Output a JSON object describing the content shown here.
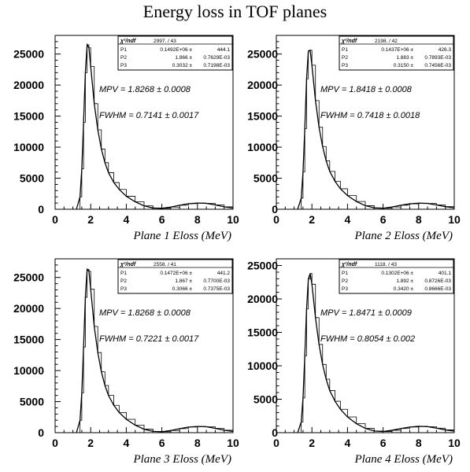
{
  "title": "Energy loss in TOF planes",
  "chart_data": [
    {
      "type": "line",
      "title": "",
      "xlabel": "Plane 1 Eloss (MeV)",
      "ylabel": "",
      "xlim": [
        0,
        10
      ],
      "ylim": [
        0,
        28000
      ],
      "xticks": [
        "0",
        "2",
        "4",
        "6",
        "8",
        "10"
      ],
      "yticks": [
        "0",
        "5000",
        "10000",
        "15000",
        "20000",
        "25000"
      ],
      "annotations": [
        "MPV = 1.8268 ± 0.0008",
        "FWHM = 0.7141 ± 0.0017"
      ],
      "fit_box": {
        "header": {
          "label": "χ²/ndf",
          "value": "2997.  /  43"
        },
        "rows": [
          {
            "label": "P1",
            "value": "0.1492E+06 ±",
            "error": "444.1"
          },
          {
            "label": "P2",
            "value": "1.866 ±",
            "error": "0.7629E-03"
          },
          {
            "label": "P3",
            "value": "0.3032 ±",
            "error": "0.7198E-03"
          }
        ]
      },
      "series": [
        {
          "x": [
            1.2,
            1.4,
            1.5,
            1.6,
            1.7,
            1.8,
            1.9,
            2.0,
            2.2,
            2.4,
            2.6,
            2.8,
            3.0,
            3.3,
            3.6,
            4.0,
            4.5,
            5.0,
            5.5,
            6.0,
            6.5,
            7.0,
            7.5,
            8.0,
            8.5,
            9.0,
            9.5,
            10.0
          ],
          "y": [
            0,
            2000,
            6500,
            14000,
            22000,
            26500,
            26000,
            23000,
            17000,
            12800,
            9700,
            7500,
            5900,
            4300,
            3200,
            2100,
            1200,
            550,
            200,
            150,
            350,
            650,
            900,
            1000,
            950,
            700,
            400,
            200
          ]
        }
      ]
    },
    {
      "type": "line",
      "title": "",
      "xlabel": "Plane 2 Eloss (MeV)",
      "ylabel": "",
      "xlim": [
        0,
        10
      ],
      "ylim": [
        0,
        28000
      ],
      "xticks": [
        "0",
        "2",
        "4",
        "6",
        "8",
        "10"
      ],
      "yticks": [
        "0",
        "5000",
        "10000",
        "15000",
        "20000",
        "25000"
      ],
      "annotations": [
        "MPV = 1.8418 ± 0.0008",
        "FWHM = 0.7418 ± 0.0018"
      ],
      "fit_box": {
        "header": {
          "label": "χ²/ndf",
          "value": "2198.  /  42"
        },
        "rows": [
          {
            "label": "P1",
            "value": "0.1437E+06 ±",
            "error": "426.3"
          },
          {
            "label": "P2",
            "value": "1.883 ±",
            "error": "0.7893E-03"
          },
          {
            "label": "P3",
            "value": "0.3150 ±",
            "error": "0.7456E-03"
          }
        ]
      },
      "series": [
        {
          "x": [
            1.2,
            1.4,
            1.5,
            1.6,
            1.7,
            1.8,
            1.9,
            2.0,
            2.2,
            2.4,
            2.6,
            2.8,
            3.0,
            3.3,
            3.6,
            4.0,
            4.5,
            5.0,
            5.5,
            6.0,
            6.5,
            7.0,
            7.5,
            8.0,
            8.5,
            9.0,
            9.5,
            10.0
          ],
          "y": [
            0,
            1800,
            6000,
            13000,
            21000,
            25500,
            25600,
            23200,
            17500,
            13200,
            10100,
            7800,
            6100,
            4500,
            3300,
            2200,
            1250,
            580,
            220,
            160,
            360,
            650,
            880,
            980,
            930,
            700,
            420,
            220
          ]
        }
      ]
    },
    {
      "type": "line",
      "title": "",
      "xlabel": "Plane 3 Eloss (MeV)",
      "ylabel": "",
      "xlim": [
        0,
        10
      ],
      "ylim": [
        0,
        28000
      ],
      "xticks": [
        "0",
        "2",
        "4",
        "6",
        "8",
        "10"
      ],
      "yticks": [
        "0",
        "5000",
        "10000",
        "15000",
        "20000",
        "25000"
      ],
      "annotations": [
        "MPV = 1.8268 ± 0.0008",
        "FWHM = 0.7221 ± 0.0017"
      ],
      "fit_box": {
        "header": {
          "label": "χ²/ndf",
          "value": "2558.  /  41"
        },
        "rows": [
          {
            "label": "P1",
            "value": "0.1472E+06 ±",
            "error": "441.2"
          },
          {
            "label": "P2",
            "value": "1.867 ±",
            "error": "0.7700E-03"
          },
          {
            "label": "P3",
            "value": "0.3066 ±",
            "error": "0.7375E-03"
          }
        ]
      },
      "series": [
        {
          "x": [
            1.2,
            1.4,
            1.5,
            1.6,
            1.7,
            1.8,
            1.9,
            2.0,
            2.2,
            2.4,
            2.6,
            2.8,
            3.0,
            3.3,
            3.6,
            4.0,
            4.5,
            5.0,
            5.5,
            6.0,
            6.5,
            7.0,
            7.5,
            8.0,
            8.5,
            9.0,
            9.5,
            10.0
          ],
          "y": [
            0,
            2000,
            6400,
            13800,
            21800,
            26300,
            26000,
            23100,
            17100,
            12900,
            9800,
            7600,
            6000,
            4400,
            3250,
            2150,
            1220,
            560,
            210,
            150,
            350,
            650,
            900,
            1000,
            950,
            700,
            400,
            200
          ]
        }
      ]
    },
    {
      "type": "line",
      "title": "",
      "xlabel": "Plane 4 Eloss (MeV)",
      "ylabel": "",
      "xlim": [
        0,
        10
      ],
      "ylim": [
        0,
        26000
      ],
      "xticks": [
        "0",
        "2",
        "4",
        "6",
        "8",
        "10"
      ],
      "yticks": [
        "0",
        "5000",
        "10000",
        "15000",
        "20000",
        "25000"
      ],
      "annotations": [
        "MPV = 1.8471 ± 0.0009",
        "FWHM = 0.8054 ± 0.002"
      ],
      "fit_box": {
        "header": {
          "label": "χ²/ndf",
          "value": "1118.  /  43"
        },
        "rows": [
          {
            "label": "P1",
            "value": "0.1302E+06 ±",
            "error": "401.1"
          },
          {
            "label": "P2",
            "value": "1.892 ±",
            "error": "0.8726E-03"
          },
          {
            "label": "P3",
            "value": "0.3420 ±",
            "error": "0.8666E-03"
          }
        ]
      },
      "series": [
        {
          "x": [
            1.2,
            1.4,
            1.5,
            1.6,
            1.7,
            1.8,
            1.9,
            2.0,
            2.2,
            2.4,
            2.6,
            2.8,
            3.0,
            3.3,
            3.6,
            4.0,
            4.5,
            5.0,
            5.5,
            6.0,
            6.5,
            7.0,
            7.5,
            8.0,
            8.5,
            9.0,
            9.5,
            10.0
          ],
          "y": [
            0,
            1600,
            5200,
            11500,
            18500,
            23000,
            23800,
            22200,
            17200,
            13200,
            10200,
            8000,
            6300,
            4700,
            3500,
            2350,
            1350,
            640,
            250,
            170,
            360,
            620,
            840,
            950,
            900,
            680,
            420,
            220
          ]
        }
      ]
    }
  ]
}
